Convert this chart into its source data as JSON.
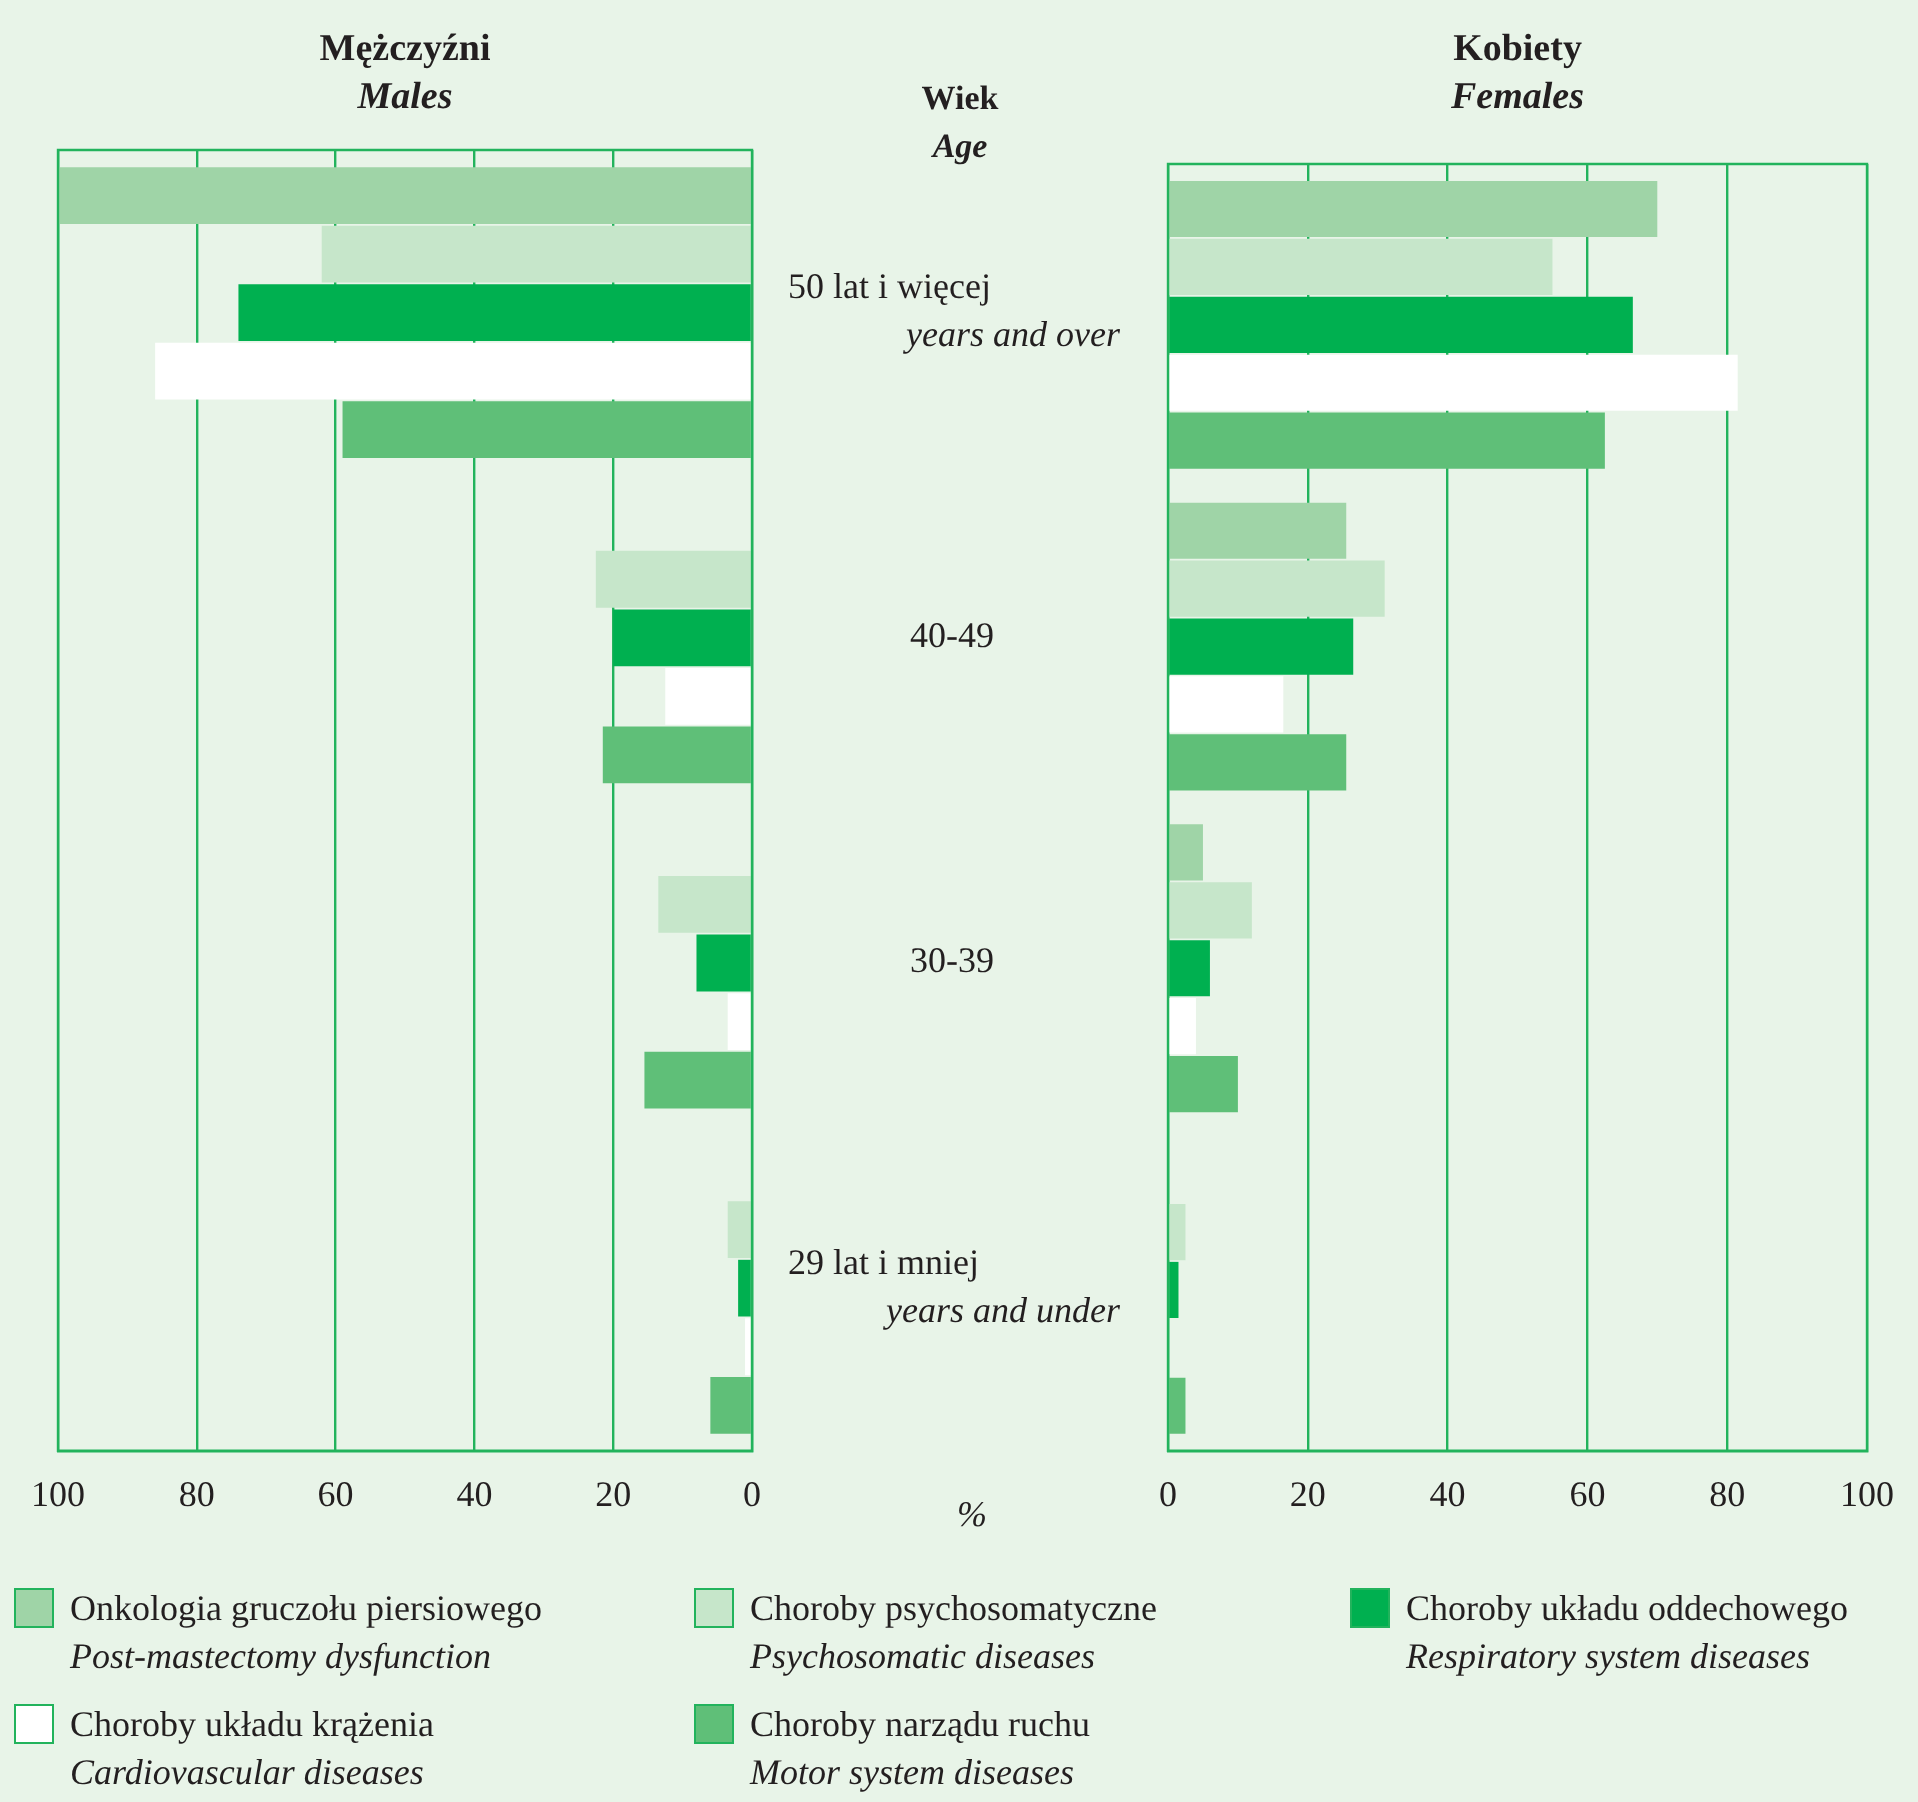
{
  "chart_data": [
    {
      "type": "bar",
      "orientation": "horizontal",
      "title": "Mężczyźni",
      "subtitle": "Males",
      "ylabel": "Wiek\nAge",
      "xlabel": "%",
      "categories": [
        "50 lat i więcej\nyears and over",
        "40-49",
        "30-39",
        "29 lat i mniej\nyears and under"
      ],
      "xlim": [
        100,
        0
      ],
      "xticks": [
        100,
        80,
        60,
        40,
        20,
        0
      ],
      "grid": "x",
      "legend": "bottom",
      "series": [
        {
          "name": "Onkologia gruczołu piersiowego\nPost-mastectomy dysfunction",
          "color": "#9fd4a7",
          "values": [
            100,
            null,
            null,
            null
          ]
        },
        {
          "name": "Choroby psychosomatyczne\nPsychosomatic diseases",
          "color": "#c6e6ca",
          "values": [
            62,
            22.5,
            13.5,
            3.5
          ]
        },
        {
          "name": "Choroby układu oddechowego\nRespiratory system diseases",
          "color": "#00b050",
          "values": [
            74,
            20,
            8,
            2
          ]
        },
        {
          "name": "Choroby układu krążenia\nCardiovascular diseases",
          "color": "#ffffff",
          "values": [
            86,
            12.5,
            3.5,
            1
          ]
        },
        {
          "name": "Choroby narządu ruchu\nMotor system diseases",
          "color": "#5fbf78",
          "values": [
            59,
            21.5,
            15.5,
            6
          ]
        }
      ]
    },
    {
      "type": "bar",
      "orientation": "horizontal",
      "title": "Kobiety",
      "subtitle": "Females",
      "categories": [
        null,
        null,
        null,
        null
      ],
      "xlim": [
        0,
        100
      ],
      "xticks": [
        0,
        20,
        40,
        60,
        80,
        100
      ],
      "grid": "x",
      "tick_labels": "x",
      "series": [
        {
          "color": "#9fd4a7",
          "values": [
            70,
            25.5,
            5,
            null
          ]
        },
        {
          "color": "#c6e6ca",
          "values": [
            55,
            31,
            12,
            2.5
          ]
        },
        {
          "color": "#00b050",
          "values": [
            66.5,
            26.5,
            6,
            1.5
          ]
        },
        {
          "color": "#ffffff",
          "values": [
            81.5,
            16.5,
            4,
            null
          ]
        },
        {
          "color": "#5fbf78",
          "values": [
            62.5,
            25.5,
            10,
            2.5
          ]
        }
      ]
    }
  ]
}
